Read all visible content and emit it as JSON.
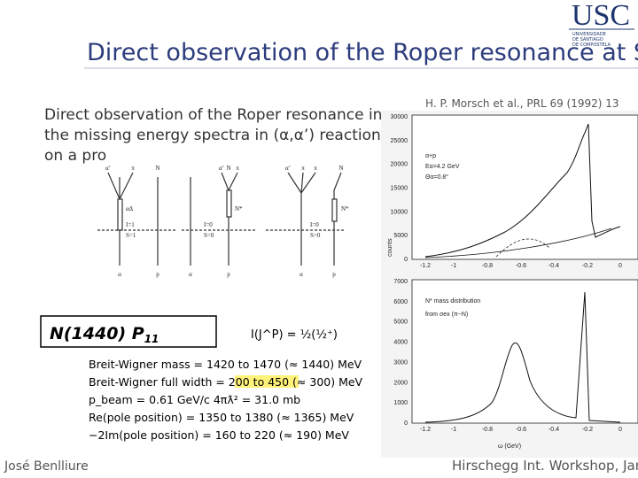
{
  "header": {
    "title": "Direct observation of the Roper resonance at S",
    "logo": "USC",
    "logo_sub": [
      "UNIVERSIDADE",
      "DE SANTIAGO",
      "DE COMPOSTELA"
    ]
  },
  "body": {
    "lines": [
      "Direct observation of the Roper resonance in",
      "the missing energy spectra in (α,α’) reactions",
      "on a pro"
    ]
  },
  "reference": "H. P. Morsch et al., PRL 69 (1992) 13",
  "diagrams": {
    "top_labels": [
      "α’",
      "π",
      "N",
      "α’",
      "π",
      "N",
      "α’",
      "π",
      "π",
      "N"
    ],
    "bottom_labels": [
      "α",
      "p",
      "α",
      "p",
      "α",
      "p"
    ],
    "inner_labels": [
      "αΔ",
      "I=1",
      "S=1",
      "I=0",
      "S=0",
      "N*",
      "I=0",
      "S=0",
      "N*"
    ]
  },
  "pdg": {
    "name": "N(1440) P",
    "name_sub": "11",
    "quantum": "I(J^P) = ½(½⁺)",
    "rows": [
      "Breit-Wigner mass = 1420 to 1470 (≈ 1440) MeV",
      [
        "Breit-Wigner full width = ",
        "200 to 450",
        " (≈ 300) MeV"
      ],
      "p_beam = 0.61 GeV/c      4πƛ² = 31.0 mb",
      "Re(pole position) = 1350 to 1380 (≈ 1365) MeV",
      "−2Im(pole position) = 160 to 220 (≈ 190) MeV"
    ]
  },
  "plot_top": {
    "ylabel": "counts",
    "yticks": [
      "30000",
      "25000",
      "20000",
      "15000",
      "10000",
      "5000",
      "0"
    ],
    "xticks": [
      "-1.2",
      "-1",
      "-0.8",
      "-0.6",
      "-0.4",
      "-0.2",
      "0"
    ],
    "legend": [
      "α+p",
      "Eα=4.2 GeV",
      "Θα=0.8°"
    ]
  },
  "plot_bottom": {
    "yticks": [
      "7000",
      "6000",
      "5000",
      "4000",
      "3000",
      "2000",
      "1000",
      "0"
    ],
    "xticks": [
      "-1.2",
      "-1",
      "-0.8",
      "-0.6",
      "-0.4",
      "-0.2",
      "0"
    ],
    "legend": [
      "N* mass distribution",
      "from σex (π−N)"
    ],
    "xlabel": "ω (GeV)"
  },
  "footer": {
    "left": "José Benlliure",
    "right": "Hirschegg Int. Workshop, Janua"
  }
}
